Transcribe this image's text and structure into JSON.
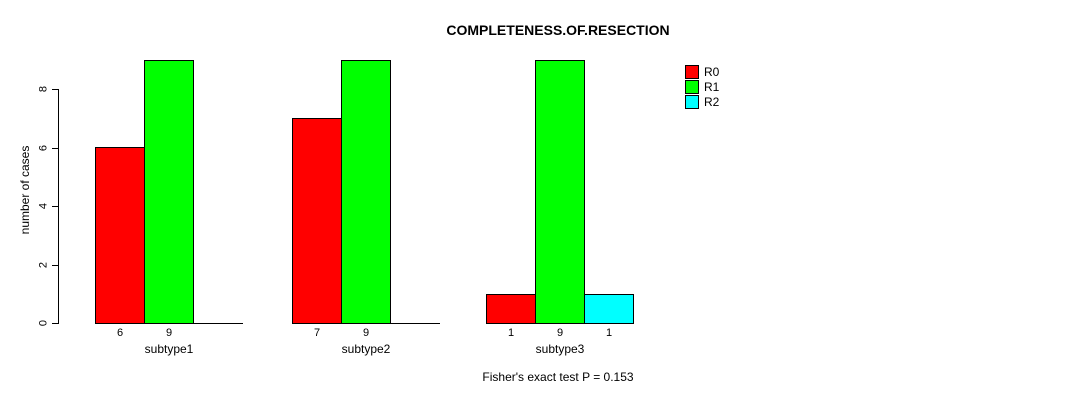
{
  "title": "COMPLETENESS.OF.RESECTION",
  "caption": "Fisher's exact test P = 0.153",
  "chart_data": {
    "type": "bar",
    "title": "COMPLETENESS.OF.RESECTION",
    "categories": [
      "subtype1",
      "subtype2",
      "subtype3"
    ],
    "series": [
      {
        "name": "R0",
        "color": "#ff0000",
        "values": [
          6,
          7,
          1
        ]
      },
      {
        "name": "R1",
        "color": "#00ff00",
        "values": [
          9,
          9,
          9
        ]
      },
      {
        "name": "R2",
        "color": "#00ffff",
        "values": [
          0,
          0,
          1
        ]
      }
    ],
    "bar_value_labels": [
      [
        "6",
        "9",
        ""
      ],
      [
        "7",
        "9",
        ""
      ],
      [
        "1",
        "9",
        "1"
      ]
    ],
    "xlabel": "",
    "ylabel": "number of cases",
    "ylim": [
      0,
      8
    ],
    "yticks": [
      0,
      2,
      4,
      6,
      8
    ],
    "grid": false,
    "legend_position": "top-right",
    "legend_entries": [
      "R0",
      "R1",
      "R2"
    ],
    "annotation": "Fisher's exact test P = 0.153",
    "axis_color": "#000000",
    "background_color": "#ffffff"
  }
}
